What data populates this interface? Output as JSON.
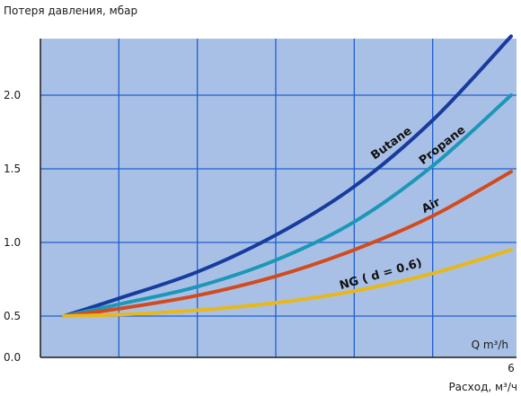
{
  "chart_data": {
    "type": "line",
    "title": "",
    "ylabel": "Потеря давления, мбар",
    "xlabel": "Расход, м³/ч",
    "x_unit_inner": "Q m³/h",
    "x_tick_labels": [
      "6"
    ],
    "y_tick_labels": [
      "0.0",
      "0.5",
      "1.0",
      "1.5",
      "2.0"
    ],
    "xlim": [
      0,
      6
    ],
    "ylim": [
      0,
      2.3
    ],
    "y_breaks": "axis starts at 0.0; curves start at 0.5",
    "grid": true,
    "colors": {
      "plot_bg": "#a9c0e6",
      "grid": "#1f5fd0",
      "axis": "#1a1a1a"
    },
    "series": [
      {
        "name": "Butane",
        "color": "#173c9e",
        "x": [
          0.3,
          1.0,
          2.0,
          3.0,
          4.0,
          5.0,
          6.0
        ],
        "y": [
          0.5,
          0.62,
          0.8,
          1.05,
          1.38,
          1.83,
          2.4
        ]
      },
      {
        "name": "Propane",
        "color": "#1c97b8",
        "x": [
          0.3,
          1.0,
          2.0,
          3.0,
          4.0,
          5.0,
          6.0
        ],
        "y": [
          0.5,
          0.58,
          0.7,
          0.88,
          1.14,
          1.52,
          2.0
        ]
      },
      {
        "name": "Air",
        "color": "#d24b1e",
        "x": [
          0.3,
          1.0,
          2.0,
          3.0,
          4.0,
          5.0,
          6.0
        ],
        "y": [
          0.5,
          0.55,
          0.64,
          0.77,
          0.95,
          1.18,
          1.48
        ]
      },
      {
        "name": "NG ( d = 0.6)",
        "color": "#e8b81a",
        "x": [
          0.3,
          1.0,
          2.0,
          3.0,
          4.0,
          5.0,
          6.0
        ],
        "y": [
          0.5,
          0.51,
          0.54,
          0.59,
          0.67,
          0.79,
          0.95
        ]
      }
    ]
  }
}
